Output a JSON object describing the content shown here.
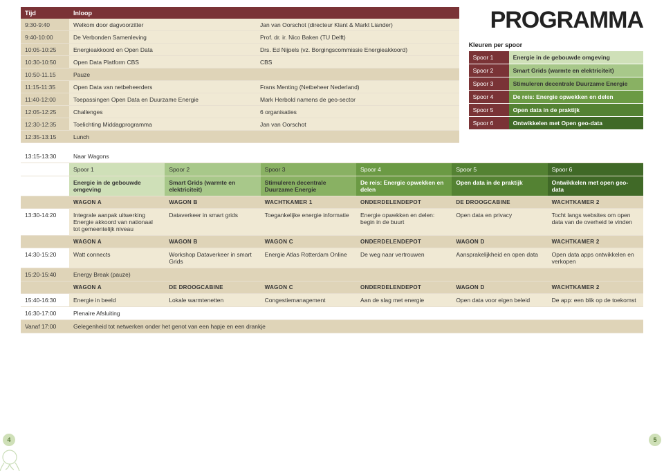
{
  "title": "PROGRAMMA",
  "page_left": "4",
  "page_right": "5",
  "colors": {
    "header_bg": "#7a3336",
    "beige_light": "#f0e9d4",
    "beige_dark": "#dfd4b8",
    "tracks": [
      "#cfe0b8",
      "#a8c88a",
      "#89b163",
      "#6b9a44",
      "#548233",
      "#406927"
    ]
  },
  "sched_headers": {
    "time": "Tijd",
    "desc": "Inloop"
  },
  "schedule": [
    {
      "time": "9:30-9:40",
      "a": "Welkom door dagvoorzitter",
      "b": "Jan van Oorschot (directeur Klant & Markt Liander)"
    },
    {
      "time": "9:40-10:00",
      "a": "De Verbonden Samenleving",
      "b": "Prof. dr. ir. Nico Baken (TU Delft)"
    },
    {
      "time": "10:05-10:25",
      "a": "Energieakkoord en Open Data",
      "b": "Drs. Ed Nijpels (vz. Borgingscommissie Energieakkoord)"
    },
    {
      "time": "10:30-10:50",
      "a": "Open Data Platform CBS",
      "b": "CBS"
    },
    {
      "time": "10:50-11.15",
      "full": "Pauze"
    },
    {
      "time": "11:15-11:35",
      "a": "Open Data van netbeheerders",
      "b": "Frans Menting (Netbeheer Nederland)"
    },
    {
      "time": "11:40-12:00",
      "a": "Toepassingen Open Data en Duurzame Energie",
      "b": "Mark Herbold namens de geo-sector"
    },
    {
      "time": "12:05-12:25",
      "a": "Challenges",
      "b": "6 organisaties"
    },
    {
      "time": "12:30-12:35",
      "a": "Toelichting Middagprogramma",
      "b": "Jan van Oorschot"
    },
    {
      "time": "12:35-13:15",
      "full": "Lunch"
    }
  ],
  "legend_title": "Kleuren per spoor",
  "legend": [
    {
      "label": "Spoor 1",
      "text": "Energie in de gebouwde omgeving"
    },
    {
      "label": "Spoor 2",
      "text": "Smart Grids (warmte en elektriciteit)"
    },
    {
      "label": "Spoor 3",
      "text": "Stimuleren decentrale Duurzame Energie"
    },
    {
      "label": "Spoor 4",
      "text": "De reis: Energie opwekken en delen"
    },
    {
      "label": "Spoor 5",
      "text": "Open data in de praktijk"
    },
    {
      "label": "Spoor 6",
      "text": "Ontwikkelen met Open geo-data"
    }
  ],
  "wagons_time": "13:15-13:30",
  "wagons_text": "Naar Wagons",
  "track_headers": [
    "Spoor 1",
    "Spoor 2",
    "Spoor 3",
    "Spoor 4",
    "Spoor 5",
    "Spoor 6"
  ],
  "track_titles": [
    "Energie in de gebouwde omgeving",
    "Smart Grids (warmte en elektriciteit)",
    "Stimuleren decentrale Duurzame Energie",
    "De reis: Energie opwekken en delen",
    "Open data in de praktijk",
    "Ontwikkelen met open geo-data"
  ],
  "slot1": {
    "locs": [
      "WAGON A",
      "WAGON B",
      "WACHTKAMER 1",
      "ONDERDELENDEPOT",
      "DE DROOGCABINE",
      "WACHTKAMER 2"
    ],
    "time": "13:30-14:20",
    "cells": [
      "Integrale aanpak uitwerking Energie akkoord van nationaal tot gemeentelijk niveau",
      "Dataverkeer in smart grids",
      "Toegankelijke energie informatie",
      "Energie opwekken en delen: begin in de buurt",
      "Open data en privacy",
      "Tocht langs websites om open data van de overheid te vinden"
    ]
  },
  "slot2": {
    "locs": [
      "WAGON A",
      "WAGON B",
      "WAGON C",
      "ONDERDELENDEPOT",
      "WAGON D",
      "WACHTKAMER 2"
    ],
    "time": "14:30-15:20",
    "cells": [
      "Watt connects",
      "Workshop Dataverkeer in smart Grids",
      "Energie Atlas Rotterdam Online",
      "De weg naar vertrouwen",
      "Aansprakelijkheid en open data",
      "Open data apps ontwikkelen en verkopen"
    ]
  },
  "break_time": "15:20-15:40",
  "break_text": "Energy Break (pauze)",
  "slot3": {
    "locs": [
      "WAGON A",
      "DE DROOGCABINE",
      "WAGON C",
      "ONDERDELENDEPOT",
      "WAGON D",
      "WACHTKAMER 2"
    ],
    "time": "15:40-16:30",
    "cells": [
      "Energie in beeld",
      "Lokale warmtenetten",
      "Congestiemanagement",
      "Aan de slag met energie",
      "Open data voor eigen beleid",
      "De app: een blik op de toekomst"
    ]
  },
  "closing_time": "16:30-17:00",
  "closing_text": "Plenaire Afsluiting",
  "network_time": "Vanaf 17:00",
  "network_text": "Gelegenheid tot netwerken onder het genot van een hapje en een drankje"
}
